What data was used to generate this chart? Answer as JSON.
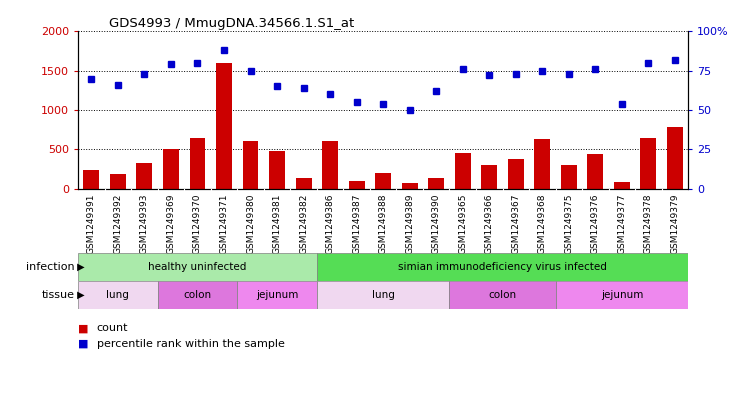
{
  "title": "GDS4993 / MmugDNA.34566.1.S1_at",
  "samples": [
    "GSM1249391",
    "GSM1249392",
    "GSM1249393",
    "GSM1249369",
    "GSM1249370",
    "GSM1249371",
    "GSM1249380",
    "GSM1249381",
    "GSM1249382",
    "GSM1249386",
    "GSM1249387",
    "GSM1249388",
    "GSM1249389",
    "GSM1249390",
    "GSM1249365",
    "GSM1249366",
    "GSM1249367",
    "GSM1249368",
    "GSM1249375",
    "GSM1249376",
    "GSM1249377",
    "GSM1249378",
    "GSM1249379"
  ],
  "counts": [
    240,
    185,
    330,
    510,
    640,
    1600,
    600,
    475,
    130,
    610,
    100,
    200,
    75,
    130,
    455,
    305,
    375,
    635,
    305,
    440,
    90,
    640,
    780
  ],
  "percentiles": [
    70,
    66,
    73,
    79,
    80,
    88,
    75,
    65,
    64,
    60,
    55,
    54,
    50,
    62,
    76,
    72,
    73,
    75,
    73,
    76,
    54,
    80,
    82
  ],
  "bar_color": "#cc0000",
  "dot_color": "#0000cc",
  "ylim_left": [
    0,
    2000
  ],
  "ylim_right": [
    0,
    100
  ],
  "yticks_left": [
    0,
    500,
    1000,
    1500,
    2000
  ],
  "yticks_right": [
    0,
    25,
    50,
    75,
    100
  ],
  "infection_groups": [
    {
      "label": "healthy uninfected",
      "start": 0,
      "end": 8,
      "color": "#aaeaaa"
    },
    {
      "label": "simian immunodeficiency virus infected",
      "start": 9,
      "end": 22,
      "color": "#55dd55"
    }
  ],
  "tissue_groups": [
    {
      "label": "lung",
      "start": 0,
      "end": 2,
      "color": "#f0d8f0"
    },
    {
      "label": "colon",
      "start": 3,
      "end": 5,
      "color": "#dd77dd"
    },
    {
      "label": "jejunum",
      "start": 6,
      "end": 8,
      "color": "#ee88ee"
    },
    {
      "label": "lung",
      "start": 9,
      "end": 13,
      "color": "#f0d8f0"
    },
    {
      "label": "colon",
      "start": 14,
      "end": 17,
      "color": "#dd77dd"
    },
    {
      "label": "jejunum",
      "start": 18,
      "end": 22,
      "color": "#ee88ee"
    }
  ],
  "bg_color": "#d8d8d8",
  "chart_bg": "#ffffff",
  "legend_count_color": "#cc0000",
  "legend_pct_color": "#0000cc",
  "infection_label": "infection",
  "tissue_label": "tissue"
}
